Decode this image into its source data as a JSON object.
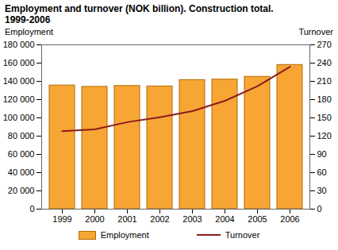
{
  "chart_data": {
    "type": "bar",
    "title": "Employment and turnover (NOK billion). Construction total. 1999-2006",
    "categories": [
      "1999",
      "2000",
      "2001",
      "2002",
      "2003",
      "2004",
      "2005",
      "2006"
    ],
    "series": [
      {
        "name": "Employment",
        "type": "bar",
        "color": "#f7a535",
        "values": [
          135500,
          134000,
          135000,
          134500,
          141500,
          142000,
          145000,
          158000
        ]
      },
      {
        "name": "Turnover",
        "type": "line",
        "color": "#8b1c1c",
        "axis": "y2",
        "values": [
          128,
          131,
          143,
          151,
          161,
          178,
          202,
          234
        ]
      }
    ],
    "ylabel": "Employment",
    "y2label": "Turnover",
    "ylim": [
      0,
      180000
    ],
    "yticks": [
      0,
      {
        "value": 20000,
        "label": "20 000"
      },
      {
        "value": 40000,
        "label": "40 000"
      },
      {
        "value": 60000,
        "label": "60 000"
      },
      {
        "value": 80000,
        "label": "80 000"
      },
      {
        "value": 100000,
        "label": "100 000"
      },
      {
        "value": 120000,
        "label": "120 000"
      },
      {
        "value": 140000,
        "label": "140 000"
      },
      {
        "value": 160000,
        "label": "160 000"
      },
      {
        "value": 180000,
        "label": "180 000"
      }
    ],
    "y2lim": [
      0,
      270
    ],
    "y2ticks": [
      0,
      30,
      60,
      90,
      120,
      150,
      180,
      210,
      240,
      270
    ],
    "legend": "bottom",
    "grid": false
  }
}
